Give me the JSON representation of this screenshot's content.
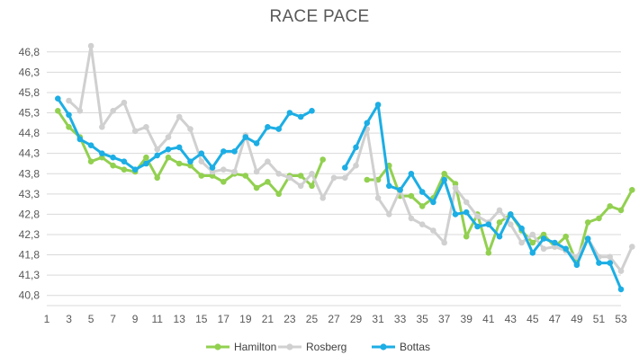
{
  "chart_data": {
    "type": "line",
    "title": "RACE PACE",
    "xlabel": "",
    "ylabel": "",
    "xlim": [
      1,
      53
    ],
    "ylim": [
      40.55,
      47.15
    ],
    "x_ticks": [
      1,
      3,
      5,
      7,
      9,
      11,
      13,
      15,
      17,
      19,
      21,
      23,
      25,
      27,
      29,
      31,
      33,
      35,
      37,
      39,
      41,
      43,
      45,
      47,
      49,
      51,
      53
    ],
    "y_ticks": [
      "40,8",
      "41,3",
      "41,8",
      "42,3",
      "42,8",
      "43,3",
      "43,8",
      "44,3",
      "44,8",
      "45,3",
      "45,8",
      "46,3",
      "46,8"
    ],
    "y_tick_values": [
      40.8,
      41.3,
      41.8,
      42.3,
      42.8,
      43.3,
      43.8,
      44.3,
      44.8,
      45.3,
      45.8,
      46.3,
      46.8
    ],
    "grid": "horizontal",
    "legend": "bottom",
    "series": [
      {
        "name": "Hamilton",
        "color": "#92d050",
        "values": [
          null,
          45.35,
          44.95,
          44.7,
          44.1,
          44.2,
          44.0,
          43.9,
          43.85,
          44.2,
          43.7,
          44.2,
          44.05,
          44.0,
          43.75,
          43.75,
          43.6,
          43.8,
          43.75,
          43.45,
          43.6,
          43.3,
          43.75,
          43.75,
          43.5,
          44.15,
          null,
          null,
          null,
          43.65,
          43.65,
          44.0,
          43.25,
          43.25,
          43.0,
          43.2,
          43.8,
          43.55,
          42.25,
          42.8,
          41.85,
          42.6,
          42.8,
          42.4,
          42.1,
          42.3,
          42.0,
          42.25,
          41.6,
          42.6,
          42.7,
          43.0,
          42.9,
          43.4
        ]
      },
      {
        "name": "Rosberg",
        "color": "#d0d0d0",
        "values": [
          null,
          null,
          45.6,
          45.35,
          46.95,
          44.95,
          45.35,
          45.55,
          44.85,
          44.95,
          44.4,
          44.7,
          45.2,
          44.9,
          44.1,
          43.85,
          43.9,
          43.85,
          44.75,
          43.85,
          44.1,
          43.8,
          43.7,
          43.5,
          43.8,
          43.2,
          43.7,
          43.7,
          44.0,
          44.9,
          43.2,
          42.8,
          43.4,
          42.7,
          42.55,
          42.4,
          42.1,
          43.45,
          43.1,
          42.75,
          42.6,
          42.9,
          42.55,
          42.1,
          42.3,
          41.95,
          42.0,
          41.9,
          41.75,
          42.2,
          41.75,
          41.75,
          41.4,
          42.0
        ]
      },
      {
        "name": "Bottas",
        "color": "#1caee4",
        "values": [
          null,
          45.65,
          45.25,
          44.65,
          44.5,
          44.3,
          44.2,
          44.1,
          43.9,
          44.05,
          44.25,
          44.4,
          44.45,
          44.1,
          44.3,
          43.95,
          44.35,
          44.35,
          44.7,
          44.55,
          44.95,
          44.9,
          45.3,
          45.2,
          45.35,
          null,
          null,
          43.95,
          44.45,
          45.05,
          45.5,
          43.5,
          43.4,
          43.8,
          43.35,
          43.1,
          43.65,
          42.8,
          42.85,
          42.5,
          42.55,
          42.25,
          42.8,
          42.45,
          41.85,
          42.2,
          42.1,
          41.95,
          41.55,
          42.2,
          41.6,
          41.6,
          40.95
        ]
      }
    ]
  }
}
